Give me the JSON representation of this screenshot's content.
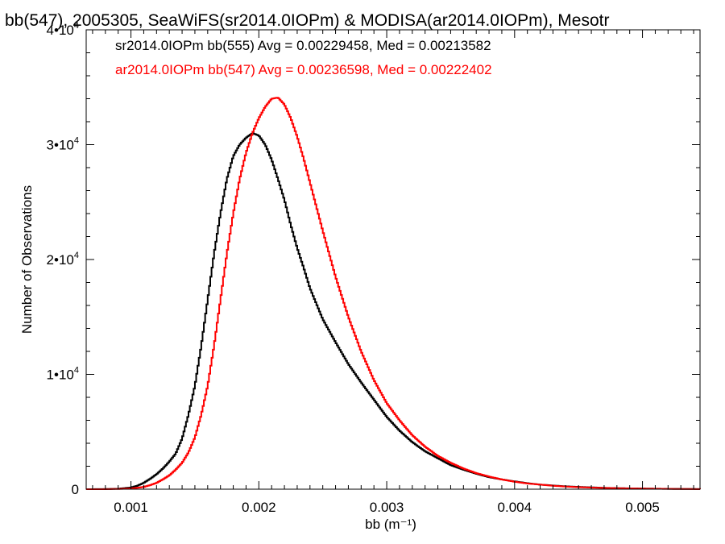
{
  "chart_data": {
    "type": "line",
    "title": "bb(547), 2005305, SeaWiFS(sr2014.0IOPm) & MODISA(ar2014.0IOPm), Mesotr",
    "xlabel": "bb (m⁻¹)",
    "ylabel": "Number of Observations",
    "xlim": [
      0.00065,
      0.00545
    ],
    "ylim": [
      0,
      40000
    ],
    "x_ticks": [
      0.001,
      0.002,
      0.003,
      0.004,
      0.005
    ],
    "x_tick_labels": [
      "0.001",
      "0.002",
      "0.003",
      "0.004",
      "0.005"
    ],
    "y_ticks": [
      {
        "value": 0,
        "label": "0"
      },
      {
        "value": 10000,
        "mantissa": "1•10",
        "exp": "4"
      },
      {
        "value": 20000,
        "mantissa": "2•10",
        "exp": "4"
      },
      {
        "value": 30000,
        "mantissa": "3•10",
        "exp": "4"
      },
      {
        "value": 40000,
        "mantissa": "4•10",
        "exp": "4"
      }
    ],
    "series": [
      {
        "name": "sr2014.0IOPm bb(555) Avg = 0.00229458, Med = 0.00213582",
        "color": "#000000",
        "x": [
          0.00065,
          0.0008,
          0.0009,
          0.001,
          0.00105,
          0.0011,
          0.00115,
          0.0012,
          0.00125,
          0.0013,
          0.00135,
          0.0014,
          0.00145,
          0.0015,
          0.00155,
          0.0016,
          0.00165,
          0.0017,
          0.00175,
          0.0018,
          0.00185,
          0.0019,
          0.00195,
          0.002,
          0.00205,
          0.0021,
          0.00215,
          0.0022,
          0.00225,
          0.0023,
          0.00235,
          0.0024,
          0.0025,
          0.0026,
          0.0027,
          0.0028,
          0.0029,
          0.003,
          0.0031,
          0.0032,
          0.0033,
          0.0034,
          0.0035,
          0.0036,
          0.0037,
          0.0038,
          0.0039,
          0.004,
          0.0041,
          0.0042,
          0.0043,
          0.0044,
          0.0045,
          0.0046,
          0.0047,
          0.0048,
          0.0049,
          0.005,
          0.0052,
          0.00545
        ],
        "y": [
          0,
          10,
          40,
          150,
          300,
          550,
          900,
          1300,
          1800,
          2400,
          3100,
          4400,
          6500,
          9000,
          12500,
          16500,
          20500,
          24000,
          27000,
          29000,
          30000,
          30600,
          31000,
          30800,
          30000,
          28700,
          27000,
          25200,
          23000,
          21000,
          19300,
          17500,
          14800,
          12800,
          10900,
          9300,
          7800,
          6300,
          5100,
          4100,
          3300,
          2700,
          2100,
          1700,
          1350,
          1050,
          850,
          680,
          520,
          400,
          320,
          250,
          200,
          160,
          120,
          95,
          75,
          60,
          30,
          10
        ]
      },
      {
        "name": "ar2014.0IOPm bb(547) Avg = 0.00236598, Med = 0.00222402",
        "color": "#ff0000",
        "x": [
          0.00065,
          0.0008,
          0.0009,
          0.001,
          0.00105,
          0.0011,
          0.00115,
          0.0012,
          0.00125,
          0.0013,
          0.00135,
          0.0014,
          0.00145,
          0.0015,
          0.00155,
          0.0016,
          0.00165,
          0.0017,
          0.00175,
          0.0018,
          0.00185,
          0.0019,
          0.00195,
          0.002,
          0.00205,
          0.0021,
          0.00215,
          0.0022,
          0.00225,
          0.0023,
          0.00235,
          0.0024,
          0.0025,
          0.0026,
          0.0027,
          0.0028,
          0.0029,
          0.003,
          0.0031,
          0.0032,
          0.0033,
          0.0034,
          0.0035,
          0.0036,
          0.0037,
          0.0038,
          0.0039,
          0.004,
          0.0041,
          0.0042,
          0.0043,
          0.0044,
          0.0045,
          0.0046,
          0.0047,
          0.0048,
          0.0049,
          0.005,
          0.0052,
          0.00545
        ],
        "y": [
          0,
          5,
          20,
          60,
          120,
          200,
          350,
          550,
          850,
          1200,
          1700,
          2300,
          3200,
          4500,
          6500,
          9000,
          12500,
          16500,
          20500,
          24000,
          27000,
          29300,
          31000,
          32300,
          33300,
          34000,
          34100,
          33500,
          32300,
          30700,
          28800,
          26700,
          22500,
          18500,
          15000,
          12000,
          9500,
          7500,
          6000,
          4700,
          3700,
          2900,
          2300,
          1800,
          1400,
          1100,
          850,
          650,
          500,
          400,
          300,
          230,
          180,
          140,
          110,
          85,
          65,
          50,
          25,
          8
        ]
      }
    ],
    "legend": "top-left",
    "grid": false
  }
}
